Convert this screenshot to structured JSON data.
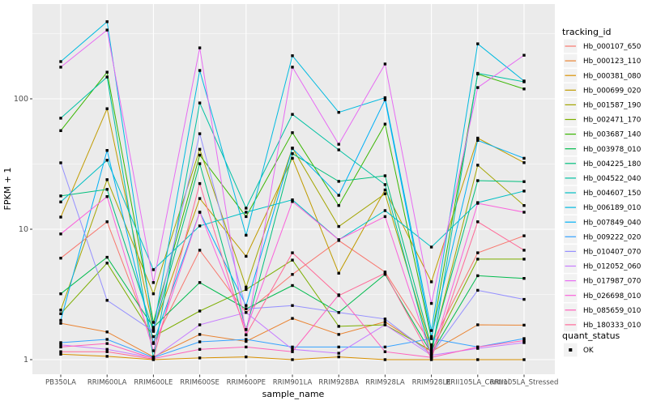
{
  "figure": {
    "background": "#FFFFFF",
    "panel_bg": "#EBEBEB",
    "grid_color": "#FFFFFF",
    "tick_color": "#333333",
    "tick_label_color": "#4D4D4D",
    "x_title": "sample_name",
    "y_title": "FPKM + 1",
    "legend": {
      "tracking_title": "tracking_id",
      "quant_title": "quant_status",
      "quant_items": [
        {
          "label": "OK",
          "marker": "black-square"
        }
      ],
      "key_bg": "#F2F2F2"
    }
  },
  "chart_data": {
    "type": "line",
    "title": "",
    "xlabel": "sample_name",
    "ylabel": "FPKM + 1",
    "y_scale": "log10",
    "y_ticks": [
      1,
      10,
      100
    ],
    "y_tick_labels": [
      "1",
      "10",
      "100"
    ],
    "y_minor_ticks": [
      3.162,
      31.62,
      316.2
    ],
    "ylim": [
      0.8,
      540
    ],
    "grid": "white major and minor on grey panel",
    "legend_position": "right",
    "marker": "black-square",
    "categories": [
      "PB350LA",
      "RRIM600LA",
      "RRIM600LE",
      "RRIM600SE",
      "RRIM600PE",
      "RRIM901LA",
      "RRIM928BA",
      "RRIM928LA",
      "RRIM928LE",
      "RRII105LA_Control",
      "RRII105LA_Stressed"
    ],
    "series": [
      {
        "name": "Hb_000107_650",
        "color": "#F8766D",
        "values": [
          6.0,
          11.4,
          1.33,
          6.9,
          2.3,
          4.5,
          8.2,
          4.7,
          1.3,
          6.6,
          8.9
        ]
      },
      {
        "name": "Hb_000123_110",
        "color": "#EA8331",
        "values": [
          1.9,
          1.63,
          1.05,
          1.56,
          1.38,
          2.07,
          1.56,
          1.95,
          1.15,
          1.85,
          1.84
        ]
      },
      {
        "name": "Hb_000381_080",
        "color": "#D89000",
        "values": [
          1.1,
          1.06,
          1.0,
          1.03,
          1.05,
          1.0,
          1.05,
          1.0,
          1.0,
          1.0,
          1.0
        ]
      },
      {
        "name": "Hb_000699_020",
        "color": "#C09B00",
        "values": [
          12.4,
          84,
          1.7,
          17.2,
          6.2,
          35,
          4.6,
          20,
          3.95,
          50,
          32.4
        ]
      },
      {
        "name": "Hb_001587_190",
        "color": "#A3A500",
        "values": [
          2.4,
          24,
          3.2,
          41,
          3.6,
          42,
          10.5,
          18.7,
          1.2,
          31,
          15.2
        ]
      },
      {
        "name": "Hb_002471_170",
        "color": "#7CAE00",
        "values": [
          2.25,
          5.5,
          1.5,
          2.36,
          3.45,
          5.8,
          1.8,
          1.85,
          1.17,
          5.9,
          5.9
        ]
      },
      {
        "name": "Hb_003687_140",
        "color": "#39B600",
        "values": [
          57,
          160,
          1.93,
          37,
          12.5,
          55,
          15.2,
          64,
          1.45,
          155,
          119
        ]
      },
      {
        "name": "Hb_003978_010",
        "color": "#00BB4E",
        "values": [
          3.2,
          6.1,
          1.77,
          3.9,
          2.45,
          3.7,
          2.3,
          4.5,
          1.12,
          4.4,
          4.2
        ]
      },
      {
        "name": "Hb_004225_180",
        "color": "#00BF7D",
        "values": [
          18,
          20.2,
          1.65,
          31.8,
          1.7,
          38,
          23.3,
          25.7,
          1.25,
          23.6,
          23.2
        ]
      },
      {
        "name": "Hb_004522_040",
        "color": "#00C1A3",
        "values": [
          71,
          147,
          1.03,
          93,
          14.5,
          76,
          40.6,
          22,
          1.05,
          157,
          135
        ]
      },
      {
        "name": "Hb_004607_150",
        "color": "#00BFC4",
        "values": [
          16.2,
          33.8,
          4.9,
          10.6,
          13.5,
          16.8,
          8.3,
          13.9,
          7.3,
          16,
          19.6
        ]
      },
      {
        "name": "Hb_006189_010",
        "color": "#00BAE0",
        "values": [
          193,
          390,
          1.7,
          165,
          9.0,
          214,
          78.7,
          102,
          1.67,
          264,
          137
        ]
      },
      {
        "name": "Hb_007849_040",
        "color": "#00B0F6",
        "values": [
          2.0,
          40.2,
          1.35,
          13.5,
          2.6,
          41.7,
          18.2,
          98.5,
          1.5,
          48,
          35
        ]
      },
      {
        "name": "Hb_009222_020",
        "color": "#35A2FF",
        "values": [
          1.35,
          1.43,
          1.04,
          1.37,
          1.43,
          1.25,
          1.25,
          1.25,
          1.45,
          1.25,
          1.45
        ]
      },
      {
        "name": "Hb_010407_070",
        "color": "#9590FF",
        "values": [
          32.3,
          2.85,
          1.65,
          54,
          2.45,
          2.6,
          2.3,
          2.05,
          1.1,
          3.4,
          2.9
        ]
      },
      {
        "name": "Hb_012052_060",
        "color": "#C77CFF",
        "values": [
          1.3,
          1.2,
          1.03,
          1.85,
          2.3,
          1.2,
          1.12,
          1.85,
          1.08,
          1.22,
          1.35
        ]
      },
      {
        "name": "Hb_017987_070",
        "color": "#E76BF3",
        "values": [
          175,
          337,
          3.9,
          246,
          1.55,
          175,
          44.8,
          185,
          2.7,
          122,
          216
        ]
      },
      {
        "name": "Hb_026698_010",
        "color": "#FA62DB",
        "values": [
          9.2,
          17.8,
          1.17,
          13.5,
          1.7,
          16.3,
          8.3,
          12.5,
          1.06,
          15.8,
          13.5
        ]
      },
      {
        "name": "Hb_085659_010",
        "color": "#FF62BC",
        "values": [
          1.25,
          1.33,
          1.02,
          1.2,
          1.25,
          1.15,
          3.14,
          1.15,
          1.04,
          1.25,
          1.4
        ]
      },
      {
        "name": "Hb_180333_010",
        "color": "#FF6A98",
        "values": [
          1.15,
          1.15,
          1.01,
          22.4,
          1.55,
          6.6,
          3.1,
          4.6,
          1.02,
          11.4,
          6.9
        ]
      }
    ]
  }
}
